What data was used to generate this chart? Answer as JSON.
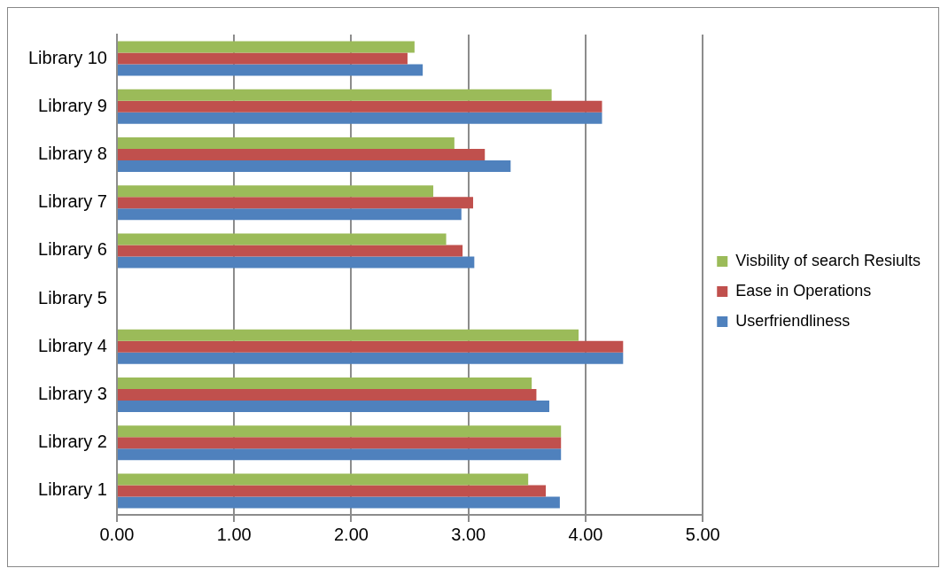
{
  "chart_data": {
    "type": "bar",
    "orientation": "horizontal",
    "categories": [
      "Library 10",
      "Library 9",
      "Library 8",
      "Library 7",
      "Library 6",
      "Library 5",
      "Library 4",
      "Library 3",
      "Library 2",
      "Library 1"
    ],
    "series": [
      {
        "name": "Visbility of search Resiults",
        "color": "#9bbb59",
        "values": [
          2.54,
          3.71,
          2.88,
          2.7,
          2.81,
          0,
          3.94,
          3.54,
          3.79,
          3.51
        ]
      },
      {
        "name": "Ease in Operations",
        "color": "#c0504d",
        "values": [
          2.48,
          4.14,
          3.14,
          3.04,
          2.95,
          0,
          4.32,
          3.58,
          3.79,
          3.66
        ]
      },
      {
        "name": "Userfriendliness",
        "color": "#4f81bd",
        "values": [
          2.61,
          4.14,
          3.36,
          2.94,
          3.05,
          0,
          4.32,
          3.69,
          3.79,
          3.78
        ]
      }
    ],
    "xlim": [
      0,
      5
    ],
    "xticks": [
      {
        "value": 0,
        "label": "0.00"
      },
      {
        "value": 1,
        "label": "1.00"
      },
      {
        "value": 2,
        "label": "2.00"
      },
      {
        "value": 3,
        "label": "3.00"
      },
      {
        "value": 4,
        "label": "4.00"
      },
      {
        "value": 5,
        "label": "5.00"
      }
    ],
    "grid": "x",
    "legend": "right"
  }
}
